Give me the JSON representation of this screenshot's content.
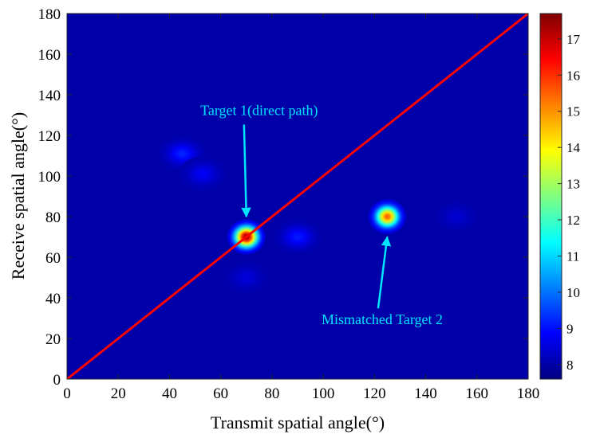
{
  "chart_data": {
    "type": "heatmap",
    "xlabel": "Transmit spatial angle(°)",
    "ylabel": "Receive spatial angle(°)",
    "xlim": [
      0,
      180
    ],
    "ylim": [
      0,
      180
    ],
    "xticks": [
      0,
      20,
      40,
      60,
      80,
      100,
      120,
      140,
      160,
      180
    ],
    "yticks": [
      0,
      20,
      40,
      60,
      80,
      100,
      120,
      140,
      160,
      180
    ],
    "colormap": "jet",
    "colorbar": {
      "min": 7.6,
      "max": 17.7,
      "ticks": [
        8,
        9,
        10,
        11,
        12,
        13,
        14,
        15,
        16,
        17
      ]
    },
    "background_value": 8.0,
    "peaks": [
      {
        "x": 70,
        "y": 70,
        "value": 17.5
      },
      {
        "x": 125,
        "y": 80,
        "value": 15.5
      },
      {
        "x": 45,
        "y": 111,
        "value": 9.2
      },
      {
        "x": 53,
        "y": 101,
        "value": 8.8
      },
      {
        "x": 90,
        "y": 70,
        "value": 9.1
      },
      {
        "x": 70,
        "y": 50,
        "value": 8.5
      },
      {
        "x": 152,
        "y": 80,
        "value": 8.4
      }
    ],
    "diagonal_line": {
      "from": [
        0,
        0
      ],
      "to": [
        180,
        180
      ],
      "color": "#ff0000"
    },
    "annotations": [
      {
        "text": "Target 1(direct path)",
        "text_at": [
          75,
          130
        ],
        "arrow_to": [
          70,
          80
        ],
        "color": "#00e5ff"
      },
      {
        "text": "Mismatched Target 2",
        "text_at": [
          123,
          27
        ],
        "arrow_to": [
          125,
          70
        ],
        "color": "#00e5ff"
      }
    ]
  }
}
